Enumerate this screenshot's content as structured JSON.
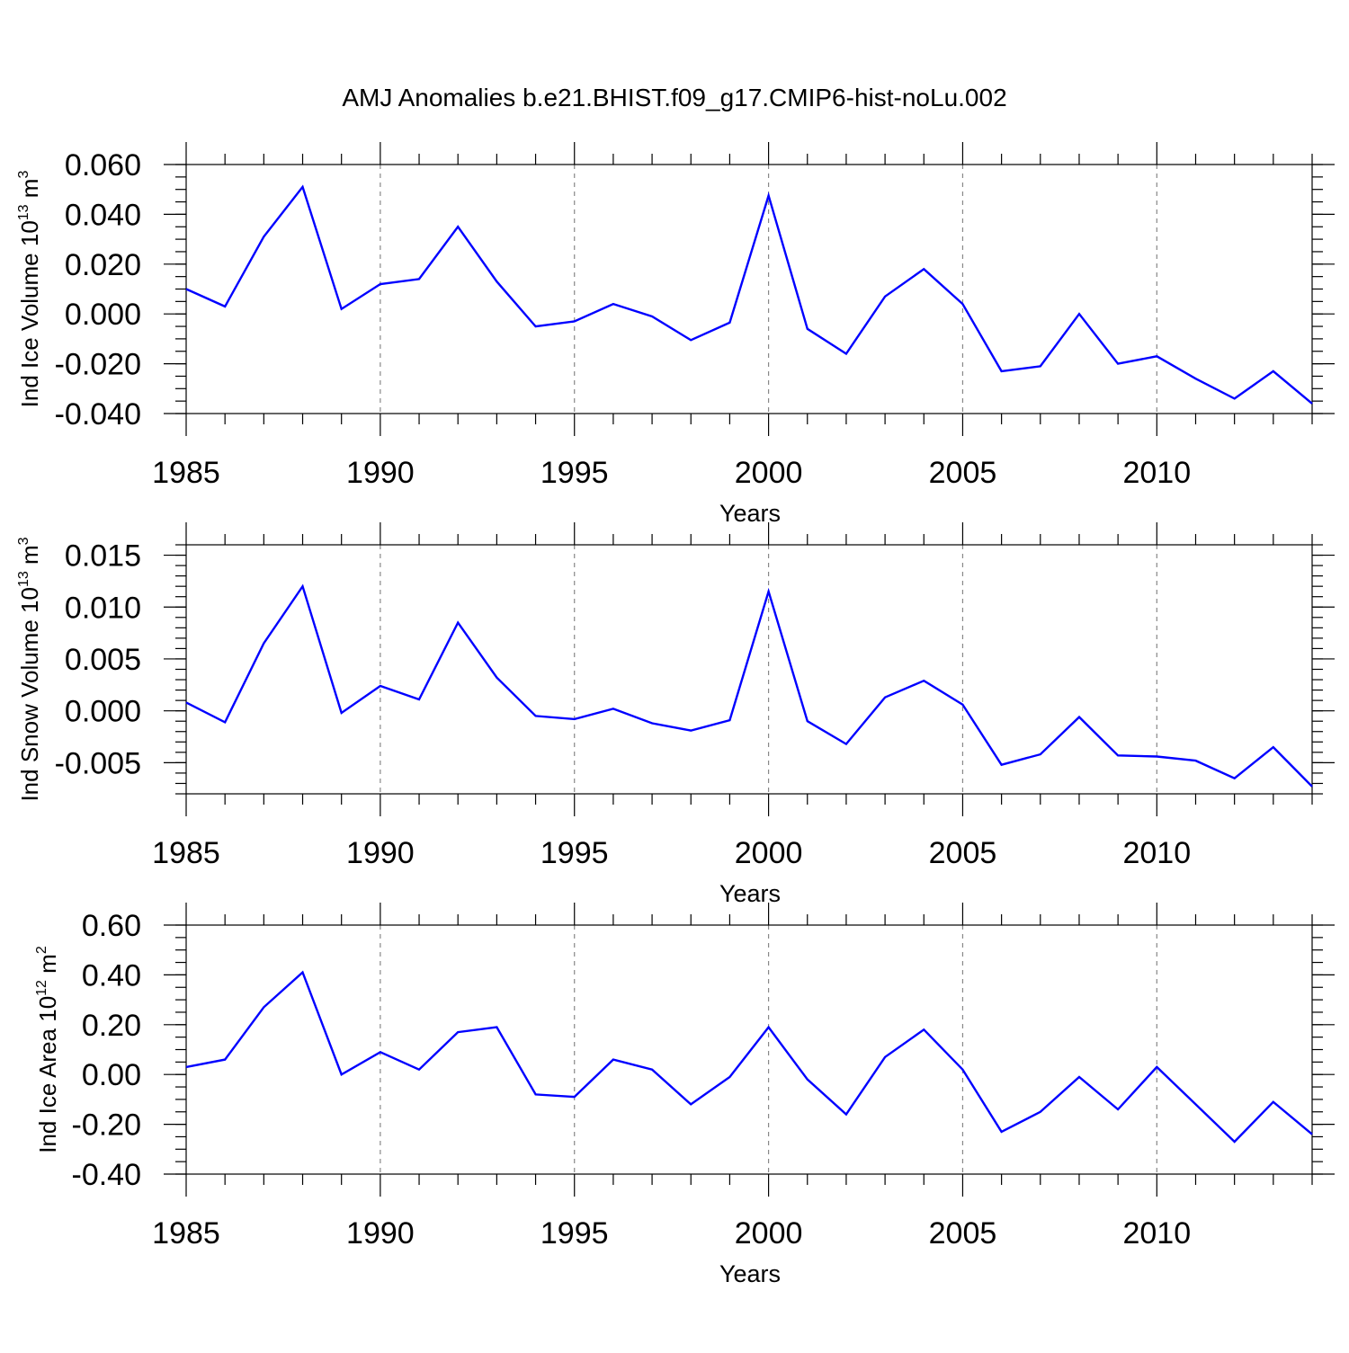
{
  "figure_title": "AMJ Anomalies b.e21.BHIST.f09_g17.CMIP6-hist-noLu.002",
  "colors": {
    "line": "#0000ff",
    "axis": "#000000",
    "grid": "#888888"
  },
  "chart_data": [
    {
      "type": "line",
      "title": "AMJ Anomalies b.e21.BHIST.f09_g17.CMIP6-hist-noLu.002",
      "xlabel": "Years",
      "ylabel": {
        "text": "Ind Ice Volume 10",
        "sup1": "13",
        "unit": " m",
        "sup2": "3"
      },
      "xlim": [
        1985,
        2014
      ],
      "ylim": [
        -0.04,
        0.06
      ],
      "yticks": [
        -0.04,
        -0.02,
        0.0,
        0.02,
        0.04,
        0.06
      ],
      "ytick_labels": [
        "-0.040",
        "-0.020",
        "0.000",
        "0.020",
        "0.040",
        "0.060"
      ],
      "yminor_step": 0.005,
      "xticks": [
        1985,
        1990,
        1995,
        2000,
        2005,
        2010
      ],
      "xtick_labels": [
        "1985",
        "1990",
        "1995",
        "2000",
        "2005",
        "2010"
      ],
      "grid_x": [
        1990,
        1995,
        2000,
        2005,
        2010
      ],
      "x": [
        1985,
        1986,
        1987,
        1988,
        1989,
        1990,
        1991,
        1992,
        1993,
        1994,
        1995,
        1996,
        1997,
        1998,
        1999,
        2000,
        2001,
        2002,
        2003,
        2004,
        2005,
        2006,
        2007,
        2008,
        2009,
        2010,
        2011,
        2012,
        2013,
        2014
      ],
      "series": [
        {
          "name": "Ind Ice Volume",
          "values": [
            0.01,
            0.003,
            0.031,
            0.051,
            0.002,
            0.012,
            0.014,
            0.035,
            0.013,
            -0.005,
            -0.003,
            0.004,
            -0.001,
            -0.0105,
            -0.0035,
            0.0475,
            -0.006,
            -0.016,
            0.007,
            0.018,
            0.004,
            -0.023,
            -0.021,
            0.0,
            -0.02,
            -0.017,
            -0.026,
            -0.034,
            -0.023,
            -0.036
          ]
        }
      ]
    },
    {
      "type": "line",
      "xlabel": "Years",
      "ylabel": {
        "text": "Ind Snow Volume 10",
        "sup1": "13",
        "unit": " m",
        "sup2": "3"
      },
      "xlim": [
        1985,
        2014
      ],
      "ylim": [
        -0.008,
        0.016
      ],
      "yticks": [
        -0.005,
        0.0,
        0.005,
        0.01,
        0.015
      ],
      "ytick_labels": [
        "-0.005",
        "0.000",
        "0.005",
        "0.010",
        "0.015"
      ],
      "yminor_step": 0.001,
      "xticks": [
        1985,
        1990,
        1995,
        2000,
        2005,
        2010
      ],
      "xtick_labels": [
        "1985",
        "1990",
        "1995",
        "2000",
        "2005",
        "2010"
      ],
      "grid_x": [
        1990,
        1995,
        2000,
        2005,
        2010
      ],
      "x": [
        1985,
        1986,
        1987,
        1988,
        1989,
        1990,
        1991,
        1992,
        1993,
        1994,
        1995,
        1996,
        1997,
        1998,
        1999,
        2000,
        2001,
        2002,
        2003,
        2004,
        2005,
        2006,
        2007,
        2008,
        2009,
        2010,
        2011,
        2012,
        2013,
        2014
      ],
      "series": [
        {
          "name": "Ind Snow Volume",
          "values": [
            0.0008,
            -0.0011,
            0.0065,
            0.012,
            -0.0002,
            0.0024,
            0.0011,
            0.0085,
            0.0032,
            -0.0005,
            -0.0008,
            0.0002,
            -0.0012,
            -0.0019,
            -0.0009,
            0.0115,
            -0.001,
            -0.0032,
            0.0013,
            0.0029,
            0.0006,
            -0.0052,
            -0.0042,
            -0.0006,
            -0.0043,
            -0.0044,
            -0.0048,
            -0.0065,
            -0.0035,
            -0.0073
          ]
        }
      ]
    },
    {
      "type": "line",
      "xlabel": "Years",
      "ylabel": {
        "text": "Ind Ice Area 10",
        "sup1": "12",
        "unit": " m",
        "sup2": "2"
      },
      "xlim": [
        1985,
        2014
      ],
      "ylim": [
        -0.4,
        0.6
      ],
      "yticks": [
        -0.4,
        -0.2,
        0.0,
        0.2,
        0.4,
        0.6
      ],
      "ytick_labels": [
        "-0.40",
        "-0.20",
        "0.00",
        "0.20",
        "0.40",
        "0.60"
      ],
      "yminor_step": 0.05,
      "xticks": [
        1985,
        1990,
        1995,
        2000,
        2005,
        2010
      ],
      "xtick_labels": [
        "1985",
        "1990",
        "1995",
        "2000",
        "2005",
        "2010"
      ],
      "grid_x": [
        1990,
        1995,
        2000,
        2005,
        2010
      ],
      "x": [
        1985,
        1986,
        1987,
        1988,
        1989,
        1990,
        1991,
        1992,
        1993,
        1994,
        1995,
        1996,
        1997,
        1998,
        1999,
        2000,
        2001,
        2002,
        2003,
        2004,
        2005,
        2006,
        2007,
        2008,
        2009,
        2010,
        2011,
        2012,
        2013,
        2014
      ],
      "series": [
        {
          "name": "Ind Ice Area",
          "values": [
            0.03,
            0.06,
            0.27,
            0.41,
            0.0,
            0.09,
            0.02,
            0.17,
            0.19,
            -0.08,
            -0.09,
            0.06,
            0.02,
            -0.12,
            -0.01,
            0.19,
            -0.02,
            -0.16,
            0.07,
            0.18,
            0.02,
            -0.23,
            -0.15,
            -0.01,
            -0.14,
            0.03,
            -0.12,
            -0.27,
            -0.11,
            -0.24
          ]
        }
      ]
    }
  ]
}
